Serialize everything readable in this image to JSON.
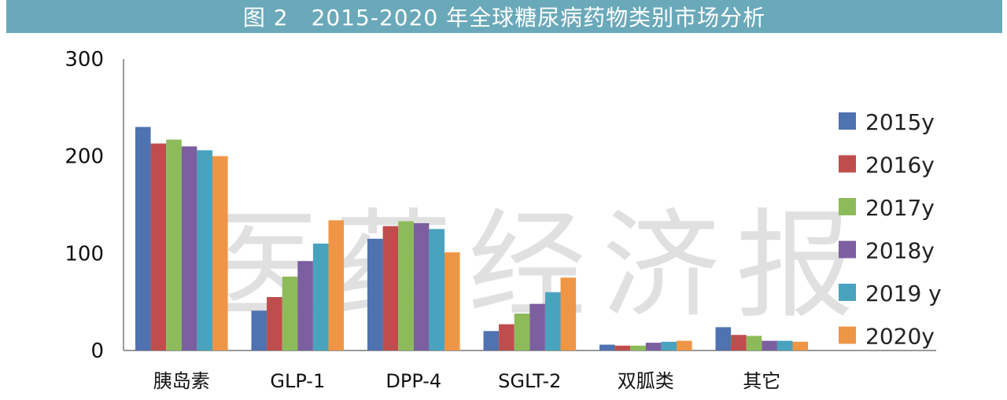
{
  "watermark": "医药经济报",
  "chart_data": {
    "type": "bar",
    "title": "图 2　2015-2020 年全球糖尿病药物类别市场分析",
    "categories": [
      "胰岛素",
      "GLP-1",
      "DPP-4",
      "SGLT-2",
      "双胍类",
      "其它"
    ],
    "series": [
      {
        "name": "2015y",
        "color": "#4f72b0",
        "values": [
          230,
          41,
          115,
          20,
          6,
          24
        ]
      },
      {
        "name": "2016y",
        "color": "#bf4d4c",
        "values": [
          213,
          55,
          128,
          27,
          5,
          16
        ]
      },
      {
        "name": "2017y",
        "color": "#8dbb5a",
        "values": [
          217,
          76,
          133,
          38,
          5,
          15
        ]
      },
      {
        "name": "2018y",
        "color": "#7c5fa0",
        "values": [
          210,
          92,
          131,
          48,
          8,
          10
        ]
      },
      {
        "name": "2019 y",
        "color": "#4aa3be",
        "values": [
          206,
          110,
          125,
          60,
          9,
          10
        ]
      },
      {
        "name": "2020y",
        "color": "#ee9646",
        "values": [
          200,
          134,
          101,
          75,
          10,
          9
        ]
      }
    ],
    "yticks": [
      0,
      100,
      200,
      300
    ],
    "ylim": [
      0,
      300
    ],
    "legend_position": "right",
    "grid": false
  }
}
